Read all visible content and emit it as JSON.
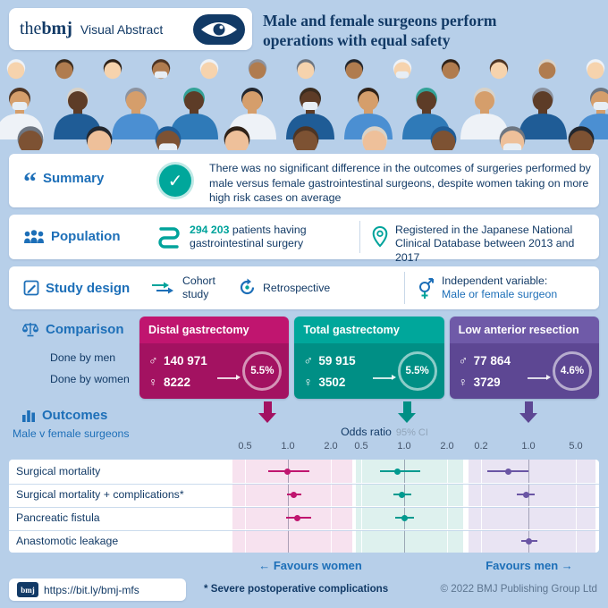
{
  "page_bg": "#b7cfe9",
  "colors": {
    "navy": "#123a66",
    "blue": "#1d6fb8",
    "teal": "#00a39b",
    "grey": "#5d7590"
  },
  "header": {
    "brand_the": "the",
    "brand_bmj": "bmj",
    "product": "Visual Abstract",
    "title_line1": "Male and female surgeons perform",
    "title_line2": "operations with equal safety"
  },
  "icons": {
    "quote": "“",
    "check": "✓",
    "left_arrow": "←",
    "right_arrow": "→"
  },
  "summary": {
    "label": "Summary",
    "text": "There was no significant difference in the outcomes of surgeries performed by male versus female gastrointestinal surgeons, despite women taking on more high risk cases on average"
  },
  "population": {
    "label": "Population",
    "count": "294 203",
    "count_suffix": " patients having",
    "line2": "gastrointestinal surgery",
    "registry_line1": "Registered in the Japanese National",
    "registry_line2": "Clinical Database between 2013 and 2017"
  },
  "study_design": {
    "label": "Study design",
    "cohort_line1": "Cohort",
    "cohort_line2": "study",
    "retrospective": "Retrospective",
    "iv_line1": "Independent variable:",
    "iv_line2": "Male or female surgeon"
  },
  "comparison": {
    "label": "Comparison",
    "row_men": "Done by men",
    "row_women": "Done by women",
    "male_symbol": "♂",
    "female_symbol": "♀",
    "groups": [
      {
        "title": "Distal gastrectomy",
        "men": "140 971",
        "women": "8222",
        "badge": "5.5%",
        "header_color": "#c0156f",
        "body_color": "#a31261"
      },
      {
        "title": "Total gastrectomy",
        "men": "59 915",
        "women": "3502",
        "badge": "5.5%",
        "header_color": "#00a79b",
        "body_color": "#008f85"
      },
      {
        "title": "Low anterior resection",
        "men": "77 864",
        "women": "3729",
        "badge": "4.6%",
        "header_color": "#6f5aa8",
        "body_color": "#5d4793"
      }
    ]
  },
  "outcomes": {
    "label": "Outcomes",
    "subtitle": "Male v female surgeons",
    "axis_title": "Odds ratio",
    "axis_ci": "95% CI",
    "favours_left": "Favours women",
    "favours_right": "Favours men"
  },
  "chart_data": {
    "type": "scatter",
    "subtype": "forest-plot",
    "title": "Odds ratio (95% CI), male v female surgeons",
    "scale": "log",
    "outcome_rows": [
      "Surgical mortality",
      "Surgical mortality + complications*",
      "Pancreatic fistula",
      "Anastomotic leakage"
    ],
    "panels": [
      {
        "name": "Distal gastrectomy",
        "color": "#c0156f",
        "tint": "#f7e2ef",
        "ticks": [
          "0.5",
          "1.0",
          "2.0"
        ],
        "tick_values": [
          0.5,
          1,
          2
        ],
        "points": [
          {
            "row": 0,
            "outcome": "Surgical mortality",
            "or": 0.99,
            "lo": 0.73,
            "hi": 1.42
          },
          {
            "row": 1,
            "outcome": "Surgical mortality + complications*",
            "or": 1.1,
            "lo": 0.98,
            "hi": 1.24
          },
          {
            "row": 2,
            "outcome": "Pancreatic fistula",
            "or": 1.17,
            "lo": 0.97,
            "hi": 1.45
          }
        ]
      },
      {
        "name": "Total gastrectomy",
        "color": "#009a8f",
        "tint": "#def1ee",
        "ticks": [
          "0.5",
          "1.0",
          "2.0"
        ],
        "tick_values": [
          0.5,
          1,
          2
        ],
        "points": [
          {
            "row": 0,
            "outcome": "Surgical mortality",
            "or": 0.9,
            "lo": 0.68,
            "hi": 1.3
          },
          {
            "row": 1,
            "outcome": "Surgical mortality + complications*",
            "or": 0.96,
            "lo": 0.84,
            "hi": 1.12
          },
          {
            "row": 2,
            "outcome": "Pancreatic fistula",
            "or": 1.0,
            "lo": 0.87,
            "hi": 1.17
          }
        ]
      },
      {
        "name": "Low anterior resection",
        "color": "#6a55a4",
        "tint": "#e9e4f3",
        "ticks": [
          "0.2",
          "1.0",
          "5.0"
        ],
        "tick_values": [
          0.2,
          1,
          5
        ],
        "points": [
          {
            "row": 0,
            "outcome": "Surgical mortality",
            "or": 0.51,
            "lo": 0.25,
            "hi": 1.0
          },
          {
            "row": 1,
            "outcome": "Surgical mortality + complications*",
            "or": 0.94,
            "lo": 0.68,
            "hi": 1.24
          },
          {
            "row": 3,
            "outcome": "Anastomotic leakage",
            "or": 1.03,
            "lo": 0.78,
            "hi": 1.35
          }
        ]
      }
    ]
  },
  "footer": {
    "logo": "bmj",
    "url": "https://bit.ly/bmj-mfs",
    "note": "* Severe postoperative complications",
    "copyright": "© 2022 BMJ Publishing Group Ltd"
  }
}
